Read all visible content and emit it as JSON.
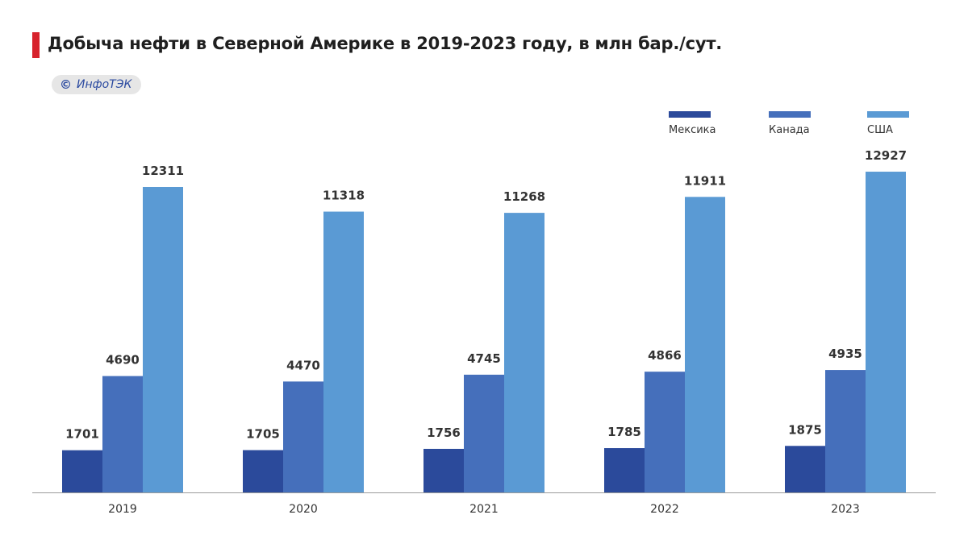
{
  "header": {
    "title": "Добыча нефти в Северной Америке в 2019-2023 году, в млн бар./сут.",
    "source_icon": "copyright-icon",
    "source_symbol": "©",
    "source": "ИнфоТЭК"
  },
  "colors": {
    "accent": "#d7222c",
    "mexico": "#2b4a9b",
    "canada": "#456fbb",
    "usa": "#5a9ad4",
    "axis": "#9a9a9a"
  },
  "chart_data": {
    "type": "bar",
    "title": "Добыча нефти в Северной Америке в 2019-2023 году, в млн бар./сут.",
    "xlabel": "",
    "ylabel": "",
    "ylim": [
      0,
      14000
    ],
    "grid": false,
    "legend_position": "top-right",
    "categories": [
      "2019",
      "2020",
      "2021",
      "2022",
      "2023"
    ],
    "series": [
      {
        "name": "Мексика",
        "values": [
          1701,
          1705,
          1756,
          1785,
          1875
        ]
      },
      {
        "name": "Канада",
        "values": [
          4690,
          4470,
          4745,
          4866,
          4935
        ]
      },
      {
        "name": "США",
        "values": [
          12311,
          11318,
          11268,
          11911,
          12927
        ]
      }
    ]
  }
}
